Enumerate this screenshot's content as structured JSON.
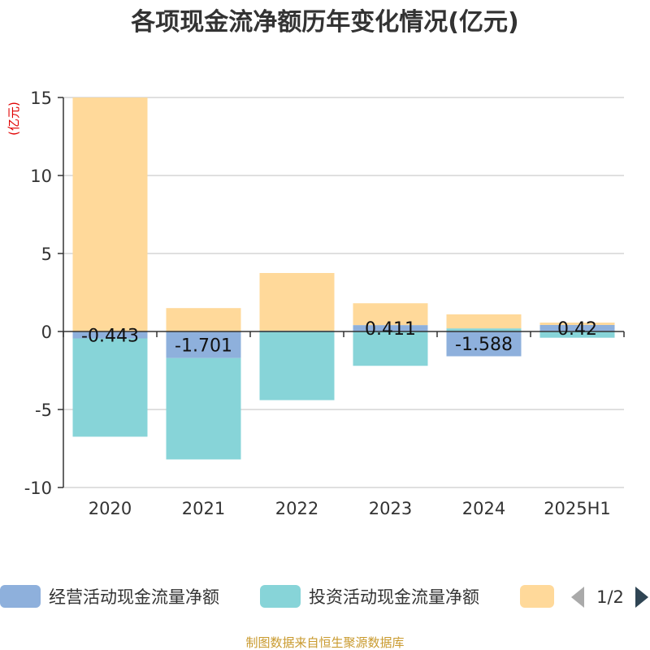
{
  "chart_data": {
    "type": "bar",
    "stacked": true,
    "title": "各项现金流净额历年变化情况(亿元)",
    "unit_label": "(亿元)",
    "categories": [
      "2020",
      "2021",
      "2022",
      "2023",
      "2024",
      "2025H1"
    ],
    "ylim": [
      -10,
      15
    ],
    "yticks": [
      15,
      10,
      5,
      0,
      -5,
      -10
    ],
    "grid": true,
    "series": [
      {
        "name": "经营活动现金流量净额",
        "color": "#8eb0dc",
        "values": [
          -0.443,
          -1.701,
          0.05,
          0.411,
          -1.588,
          0.42
        ],
        "data_labels": [
          "-0.443",
          "-1.701",
          "",
          "0.411",
          "-1.588",
          "0.42"
        ]
      },
      {
        "name": "投资活动现金流量净额",
        "color": "#87d4d8",
        "values": [
          -6.3,
          -6.5,
          -4.4,
          -2.2,
          0.2,
          -0.4
        ],
        "data_labels": []
      },
      {
        "name": "",
        "color": "#ffd99a",
        "values": [
          15,
          1.5,
          3.7,
          1.4,
          0.9,
          0.15
        ],
        "data_labels": []
      }
    ],
    "legend": {
      "position": "bottom",
      "page": "1/2"
    }
  },
  "source_text": "制图数据来自恒生聚源数据库"
}
